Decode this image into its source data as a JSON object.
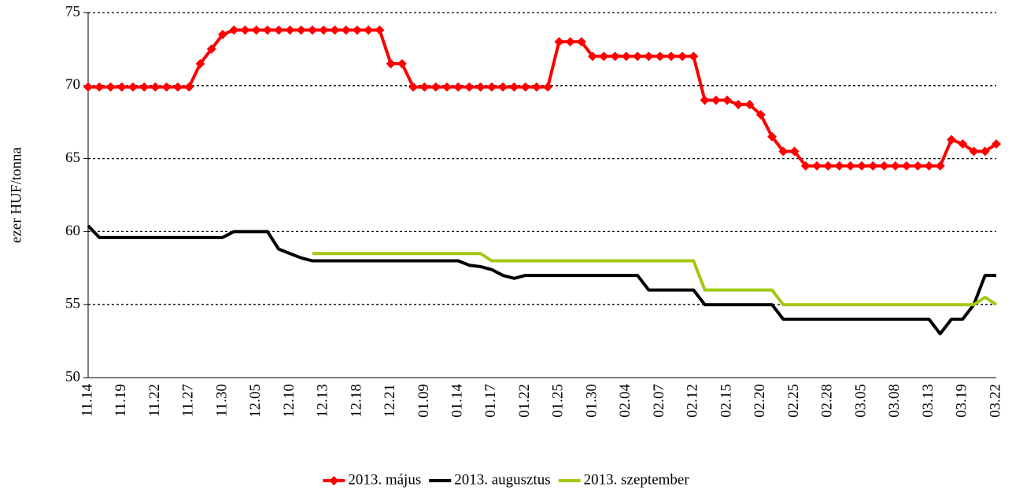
{
  "chart_data": {
    "type": "line",
    "y_label": "ezer HUF/tonna",
    "categories": [
      "11.14",
      null,
      null,
      "11.19",
      null,
      null,
      "11.22",
      null,
      null,
      "11.27",
      null,
      null,
      "11.30",
      null,
      null,
      "12.05",
      null,
      null,
      "12.10",
      null,
      null,
      "12.13",
      null,
      null,
      "12.18",
      null,
      null,
      "12.21",
      null,
      null,
      "01.09",
      null,
      null,
      "01.14",
      null,
      null,
      "01.17",
      null,
      null,
      "01.22",
      null,
      null,
      "01.25",
      null,
      null,
      "01.30",
      null,
      null,
      "02.04",
      null,
      null,
      "02.07",
      null,
      null,
      "02.12",
      null,
      null,
      "02.15",
      null,
      null,
      "02.20",
      null,
      null,
      "02.25",
      null,
      null,
      "02.28",
      null,
      null,
      "03.05",
      null,
      null,
      "03.08",
      null,
      null,
      "03.13",
      null,
      null,
      "03.19",
      null,
      null,
      "03.22"
    ],
    "series": [
      {
        "name": "2013. május",
        "color": "#ff0000",
        "marker": "diamond",
        "values": [
          69.9,
          69.9,
          69.9,
          69.9,
          69.9,
          69.9,
          69.9,
          69.9,
          69.9,
          69.9,
          71.5,
          72.5,
          73.5,
          73.8,
          73.8,
          73.8,
          73.8,
          73.8,
          73.8,
          73.8,
          73.8,
          73.8,
          73.8,
          73.8,
          73.8,
          73.8,
          73.8,
          71.5,
          71.5,
          69.9,
          69.9,
          69.9,
          69.9,
          69.9,
          69.9,
          69.9,
          69.9,
          69.9,
          69.9,
          69.9,
          69.9,
          69.9,
          73,
          73,
          73,
          72,
          72,
          72,
          72,
          72,
          72,
          72,
          72,
          72,
          72,
          69,
          69,
          69,
          68.7,
          68.7,
          68,
          66.5,
          65.5,
          65.5,
          64.5,
          64.5,
          64.5,
          64.5,
          64.5,
          64.5,
          64.5,
          64.5,
          64.5,
          64.5,
          64.5,
          64.5,
          64.5,
          66.3,
          66,
          65.5,
          65.5,
          66
        ]
      },
      {
        "name": "2013. augusztus",
        "color": "#000000",
        "values": [
          60.4,
          59.6,
          59.6,
          59.6,
          59.6,
          59.6,
          59.6,
          59.6,
          59.6,
          59.6,
          59.6,
          59.6,
          59.6,
          60,
          60,
          60,
          60,
          58.8,
          58.5,
          58.2,
          58,
          58,
          58,
          58,
          58,
          58,
          58,
          58,
          58,
          58,
          58,
          58,
          58,
          58,
          57.7,
          57.6,
          57.4,
          57,
          56.8,
          57,
          57,
          57,
          57,
          57,
          57,
          57,
          57,
          57,
          57,
          57,
          56,
          56,
          56,
          56,
          56,
          55,
          55,
          55,
          55,
          55,
          55,
          55,
          54,
          54,
          54,
          54,
          54,
          54,
          54,
          54,
          54,
          54,
          54,
          54,
          54,
          54,
          53,
          54,
          54,
          55,
          57,
          57
        ]
      },
      {
        "name": "2013. szeptember",
        "color": "#a2c814",
        "values": [
          null,
          null,
          null,
          null,
          null,
          null,
          null,
          null,
          null,
          null,
          null,
          null,
          null,
          null,
          null,
          null,
          null,
          null,
          null,
          null,
          58.5,
          58.5,
          58.5,
          58.5,
          58.5,
          58.5,
          58.5,
          58.5,
          58.5,
          58.5,
          58.5,
          58.5,
          58.5,
          58.5,
          58.5,
          58.5,
          58,
          58,
          58,
          58,
          58,
          58,
          58,
          58,
          58,
          58,
          58,
          58,
          58,
          58,
          58,
          58,
          58,
          58,
          58,
          56,
          56,
          56,
          56,
          56,
          56,
          56,
          55,
          55,
          55,
          55,
          55,
          55,
          55,
          55,
          55,
          55,
          55,
          55,
          55,
          55,
          55,
          55,
          55,
          55,
          55.5,
          55
        ]
      }
    ],
    "ylim": [
      50,
      75
    ],
    "yticks": [
      50,
      55,
      60,
      65,
      70,
      75
    ],
    "grid": true,
    "legend": "bottom"
  }
}
